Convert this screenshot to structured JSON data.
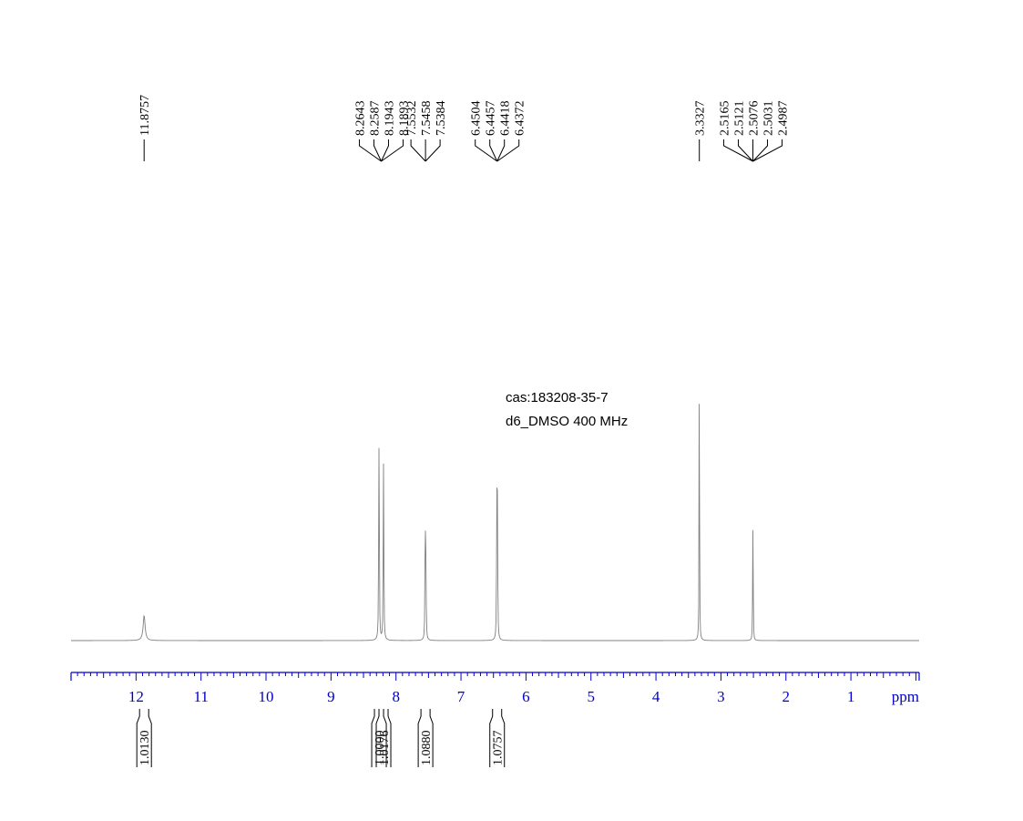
{
  "chart_data": {
    "type": "line",
    "title": "",
    "annotation_lines": [
      "cas:183208-35-7",
      "d6_DMSO  400 MHz"
    ],
    "xlabel": "ppm",
    "ylabel": "",
    "xlim": [
      13.0,
      -0.05
    ],
    "x_reversed": true,
    "x_ticks": [
      12,
      11,
      10,
      9,
      8,
      7,
      6,
      5,
      4,
      3,
      2,
      1
    ],
    "x_tick_labels": [
      "12",
      "11",
      "10",
      "9",
      "8",
      "7",
      "6",
      "5",
      "4",
      "3",
      "2",
      "1"
    ],
    "axis_color": "#0000cc",
    "trace_color": "#808080",
    "grid": false,
    "legend": "none",
    "peaks": [
      {
        "x": 11.8757,
        "height": 0.064,
        "width": 0.018
      },
      {
        "x": 8.2643,
        "height": 0.36,
        "width": 0.004
      },
      {
        "x": 8.2587,
        "height": 0.36,
        "width": 0.004
      },
      {
        "x": 8.1943,
        "height": 0.31,
        "width": 0.004
      },
      {
        "x": 8.1893,
        "height": 0.31,
        "width": 0.004
      },
      {
        "x": 7.5532,
        "height": 0.16,
        "width": 0.004
      },
      {
        "x": 7.5458,
        "height": 0.23,
        "width": 0.004
      },
      {
        "x": 7.5384,
        "height": 0.16,
        "width": 0.004
      },
      {
        "x": 6.4504,
        "height": 0.2,
        "width": 0.004
      },
      {
        "x": 6.4457,
        "height": 0.19,
        "width": 0.004
      },
      {
        "x": 6.4418,
        "height": 0.19,
        "width": 0.004
      },
      {
        "x": 6.4372,
        "height": 0.2,
        "width": 0.004
      },
      {
        "x": 3.3327,
        "height": 1.0,
        "width": 0.003
      },
      {
        "x": 2.5165,
        "height": 0.018,
        "width": 0.003
      },
      {
        "x": 2.5121,
        "height": 0.07,
        "width": 0.003
      },
      {
        "x": 2.5076,
        "height": 0.24,
        "width": 0.003
      },
      {
        "x": 2.5031,
        "height": 0.07,
        "width": 0.003
      },
      {
        "x": 2.4987,
        "height": 0.018,
        "width": 0.003
      }
    ],
    "peak_label_groups": [
      {
        "labels": [
          "11.8757"
        ],
        "anchor": 11.8757
      },
      {
        "labels": [
          "8.2643",
          "8.2587",
          "8.1943",
          "8.1893"
        ],
        "anchor": 8.2268
      },
      {
        "labels": [
          "7.5532",
          "7.5458",
          "7.5384"
        ],
        "anchor": 7.5458
      },
      {
        "labels": [
          "6.4504",
          "6.4457",
          "6.4418",
          "6.4372"
        ],
        "anchor": 6.4438
      },
      {
        "labels": [
          "3.3327"
        ],
        "anchor": 3.3327
      },
      {
        "labels": [
          "2.5165",
          "2.5121",
          "2.5076",
          "2.5031",
          "2.4987"
        ],
        "anchor": 2.5076
      }
    ],
    "integrals": [
      {
        "center": 11.8757,
        "value": "1.0130"
      },
      {
        "center": 8.2615,
        "value": "1.0000"
      },
      {
        "center": 8.1918,
        "value": "1.0176"
      },
      {
        "center": 7.5458,
        "value": "1.0880"
      },
      {
        "center": 6.4438,
        "value": "1.0757"
      }
    ]
  }
}
